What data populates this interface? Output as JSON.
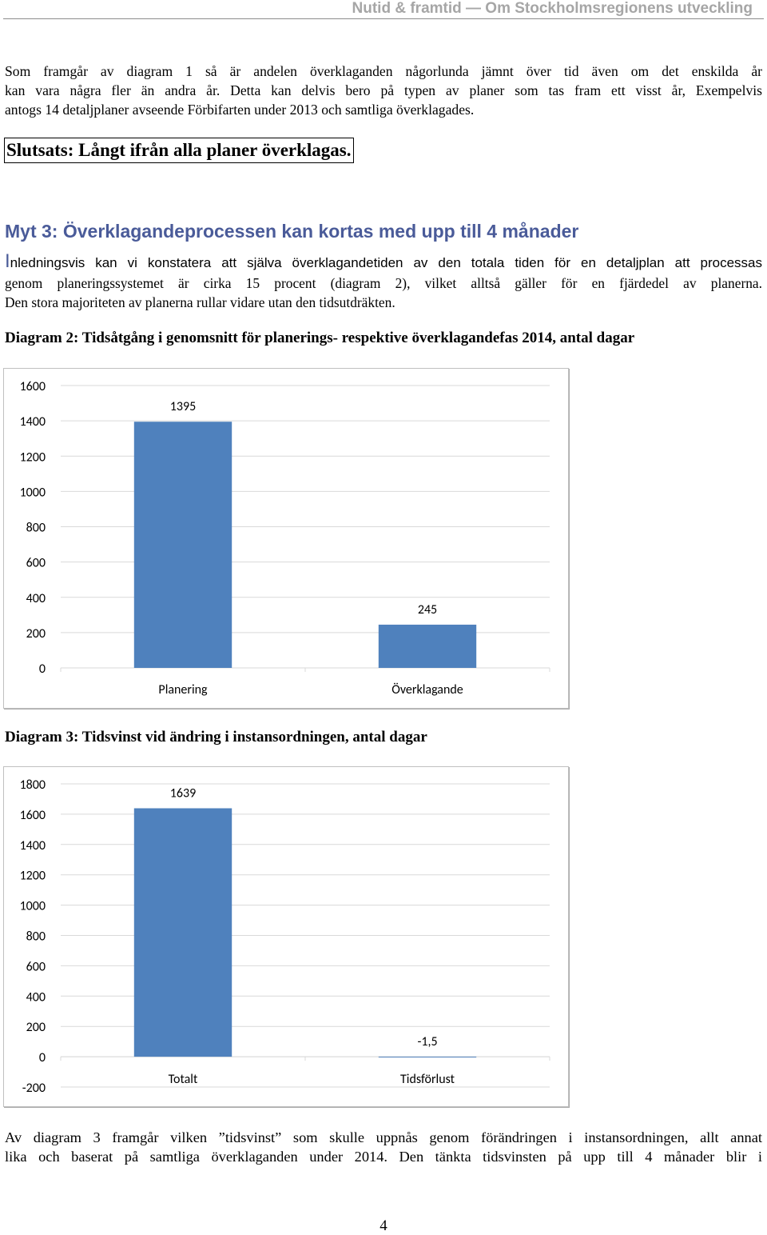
{
  "header": {
    "title": "Nutid & framtid — Om Stockholmsregionens utveckling"
  },
  "intro": {
    "lines": [
      "Som framgår av diagram 1 så är andelen överklaganden någorlunda jämnt över tid även om det enskilda år",
      "kan vara några fler än andra år. Detta kan delvis bero på typen av planer som tas fram ett visst år, Exempelvis",
      "antogs 14 detaljplaner avseende Förbifarten under 2013 och samtliga överklagades."
    ]
  },
  "conclusion": "Slutsats: Långt ifrån alla planer överklagas.",
  "section": {
    "title": "Myt 3: Överklagandeprocessen kan kortas med upp till 4 månader",
    "dropcap": "I",
    "line1_rest": "nledningsvis kan vi konstatera att själva överklagandetiden av den totala tiden för en detaljplan att processas",
    "line2": "genom planeringssystemet är cirka 15 procent (diagram 2), vilket alltså gäller för en fjärdedel av planerna.",
    "line3": "Den stora majoriteten av planerna rullar vidare utan den tidsutdräkten."
  },
  "chart_data": [
    {
      "type": "bar",
      "title": "Diagram 2: Tidsåtgång i genomsnitt för planerings- respektive överklagandefas 2014, antal dagar",
      "categories": [
        "Planering",
        "Överklagande"
      ],
      "values": [
        1395,
        245
      ],
      "data_labels": [
        "1395",
        "245"
      ],
      "ylim": [
        0,
        1600
      ],
      "yticks": [
        0,
        200,
        400,
        600,
        800,
        1000,
        1200,
        1400,
        1600
      ],
      "grid": true,
      "color": "#4f81bd"
    },
    {
      "type": "bar",
      "title": "Diagram 3: Tidsvinst vid ändring i instansordningen, antal dagar",
      "categories": [
        "Totalt",
        "Tidsförlust"
      ],
      "values": [
        1639,
        -1.5
      ],
      "data_labels": [
        "1639",
        "-1,5"
      ],
      "ylim": [
        -200,
        1800
      ],
      "yticks": [
        -200,
        0,
        200,
        400,
        600,
        800,
        1000,
        1200,
        1400,
        1600,
        1800
      ],
      "grid": true,
      "color": "#4f81bd"
    }
  ],
  "footer_text": {
    "lines": [
      "Av diagram 3 framgår vilken ”tidsvinst” som skulle uppnås genom förändringen i instansordningen, allt annat",
      "lika och baserat på samtliga överklaganden under 2014. Den tänkta tidsvinsten på upp till 4 månader blir i"
    ]
  },
  "page_number": "4"
}
